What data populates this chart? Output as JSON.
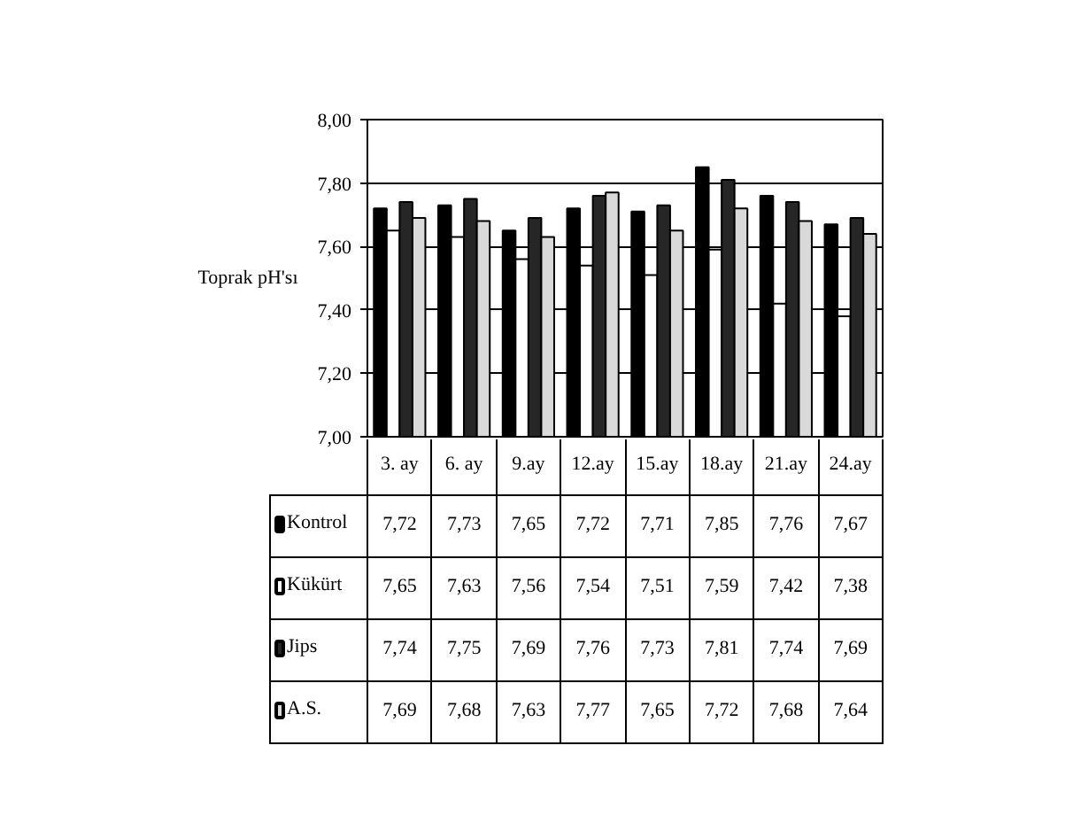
{
  "chart_data": {
    "type": "bar",
    "ylabel": "Toprak pH'sı",
    "categories": [
      "3. ay",
      "6. ay",
      "9.ay",
      "12.ay",
      "15.ay",
      "18.ay",
      "21.ay",
      "24.ay"
    ],
    "series": [
      {
        "name": "Kontrol",
        "color": "#000000",
        "values": [
          7.72,
          7.73,
          7.65,
          7.72,
          7.71,
          7.85,
          7.76,
          7.67
        ],
        "value_labels": [
          "7,72",
          "7,73",
          "7,65",
          "7,72",
          "7,71",
          "7,85",
          "7,76",
          "7,67"
        ]
      },
      {
        "name": "Kükürt",
        "color": "#ffffff",
        "values": [
          7.65,
          7.63,
          7.56,
          7.54,
          7.51,
          7.59,
          7.42,
          7.38
        ],
        "value_labels": [
          "7,65",
          "7,63",
          "7,56",
          "7,54",
          "7,51",
          "7,59",
          "7,42",
          "7,38"
        ]
      },
      {
        "name": "Jips",
        "color": "#262626",
        "values": [
          7.74,
          7.75,
          7.69,
          7.76,
          7.73,
          7.81,
          7.74,
          7.69
        ],
        "value_labels": [
          "7,74",
          "7,75",
          "7,69",
          "7,76",
          "7,73",
          "7,81",
          "7,74",
          "7,69"
        ]
      },
      {
        "name": "A.S.",
        "color": "#d9d9d9",
        "values": [
          7.69,
          7.68,
          7.63,
          7.77,
          7.65,
          7.72,
          7.68,
          7.64
        ],
        "value_labels": [
          "7,69",
          "7,68",
          "7,63",
          "7,77",
          "7,65",
          "7,72",
          "7,68",
          "7,64"
        ]
      }
    ],
    "ylim": [
      7.0,
      8.0
    ],
    "yticks": [
      {
        "value": 7.0,
        "label": "7,00"
      },
      {
        "value": 7.2,
        "label": "7,20"
      },
      {
        "value": 7.4,
        "label": "7,40"
      },
      {
        "value": 7.6,
        "label": "7,60"
      },
      {
        "value": 7.8,
        "label": "7,80"
      },
      {
        "value": 8.0,
        "label": "8,00"
      }
    ],
    "grid": "y",
    "legend": "bottom"
  }
}
